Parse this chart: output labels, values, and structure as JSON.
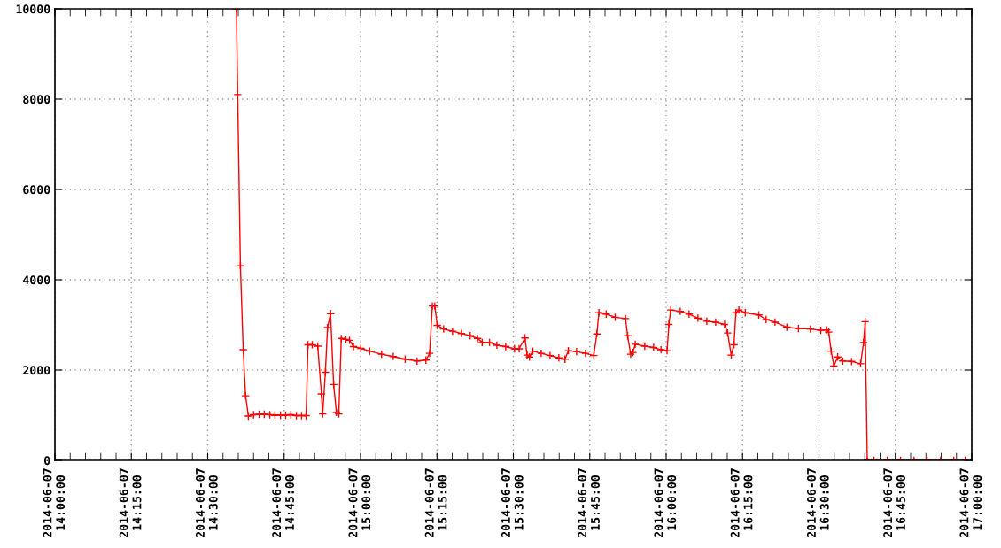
{
  "chart_data": {
    "type": "line",
    "x": [
      "2014-06-07T14:35:38",
      "2014-06-07T14:35:53",
      "2014-06-07T14:36:25",
      "2014-06-07T14:36:58",
      "2014-06-07T14:37:26",
      "2014-06-07T14:37:59",
      "2014-06-07T14:39:00",
      "2014-06-07T14:40:05",
      "2014-06-07T14:41:06",
      "2014-06-07T14:42:11",
      "2014-06-07T14:43:12",
      "2014-06-07T14:44:17",
      "2014-06-07T14:45:18",
      "2014-06-07T14:46:19",
      "2014-06-07T14:47:24",
      "2014-06-07T14:48:25",
      "2014-06-07T14:49:19",
      "2014-06-07T14:49:41",
      "2014-06-07T14:50:31",
      "2014-06-07T14:51:36",
      "2014-06-07T14:52:19",
      "2014-06-07T14:52:34",
      "2014-06-07T14:53:06",
      "2014-06-07T14:53:31",
      "2014-06-07T14:54:07",
      "2014-06-07T14:54:43",
      "2014-06-07T14:55:16",
      "2014-06-07T14:55:44",
      "2014-06-07T14:56:13",
      "2014-06-07T14:57:07",
      "2014-06-07T14:57:50",
      "2014-06-07T14:58:37",
      "2014-06-07T15:00:04",
      "2014-06-07T15:01:48",
      "2014-06-07T15:04:08",
      "2014-06-07T15:06:25",
      "2014-06-07T15:08:46",
      "2014-06-07T15:11:06",
      "2014-06-07T15:12:50",
      "2014-06-07T15:13:34",
      "2014-06-07T15:14:06",
      "2014-06-07T15:14:35",
      "2014-06-07T15:15:04",
      "2014-06-07T15:16:19",
      "2014-06-07T15:18:04",
      "2014-06-07T15:19:48",
      "2014-06-07T15:21:32",
      "2014-06-07T15:22:59",
      "2014-06-07T15:23:53",
      "2014-06-07T15:25:19",
      "2014-06-07T15:26:46",
      "2014-06-07T15:28:30",
      "2014-06-07T15:30:14",
      "2014-06-07T15:31:08",
      "2014-06-07T15:32:17",
      "2014-06-07T15:32:42",
      "2014-06-07T15:33:11",
      "2014-06-07T15:33:50",
      "2014-06-07T15:35:28",
      "2014-06-07T15:37:12",
      "2014-06-07T15:38:56",
      "2014-06-07T15:40:08",
      "2014-06-07T15:40:48",
      "2014-06-07T15:42:25",
      "2014-06-07T15:44:10",
      "2014-06-07T15:45:47",
      "2014-06-07T15:46:23",
      "2014-06-07T15:46:48",
      "2014-06-07T15:48:14",
      "2014-06-07T15:49:59",
      "2014-06-07T15:52:01",
      "2014-06-07T15:52:26",
      "2014-06-07T15:53:02",
      "2014-06-07T15:53:28",
      "2014-06-07T15:53:56",
      "2014-06-07T15:55:48",
      "2014-06-07T15:57:32",
      "2014-06-07T15:58:59",
      "2014-06-07T16:00:11",
      "2014-06-07T16:00:32",
      "2014-06-07T16:00:54",
      "2014-06-07T16:02:46",
      "2014-06-07T16:04:30",
      "2014-06-07T16:06:14",
      "2014-06-07T16:07:59",
      "2014-06-07T16:09:43",
      "2014-06-07T16:11:28",
      "2014-06-07T16:12:04",
      "2014-06-07T16:12:47",
      "2014-06-07T16:13:19",
      "2014-06-07T16:13:41",
      "2014-06-07T16:14:17",
      "2014-06-07T16:15:32",
      "2014-06-07T16:18:11",
      "2014-06-07T16:19:37",
      "2014-06-07T16:21:22",
      "2014-06-07T16:23:42",
      "2014-06-07T16:25:59",
      "2014-06-07T16:28:19",
      "2014-06-07T16:30:22",
      "2014-06-07T16:31:30",
      "2014-06-07T16:31:55",
      "2014-06-07T16:32:24",
      "2014-06-07T16:32:56",
      "2014-06-07T16:33:40",
      "2014-06-07T16:34:41",
      "2014-06-07T16:36:25",
      "2014-06-07T16:38:10",
      "2014-06-07T16:38:46",
      "2014-06-07T16:39:04",
      "2014-06-07T16:39:29",
      "2014-06-07T16:40:48",
      "2014-06-07T16:43:26",
      "2014-06-07T16:46:01",
      "2014-06-07T16:48:40",
      "2014-06-07T16:51:14",
      "2014-06-07T16:53:53",
      "2014-06-07T16:56:28",
      "2014-06-07T16:58:44"
    ],
    "series": [
      {
        "color": "#ff0000",
        "values": [
          10000,
          8100,
          4310,
          2450,
          1430,
          980,
          1010,
          1020,
          1020,
          1010,
          1000,
          1000,
          1000,
          1010,
          990,
          990,
          990,
          2560,
          2560,
          2530,
          1470,
          1030,
          1950,
          2940,
          3250,
          1680,
          1060,
          1030,
          2700,
          2680,
          2660,
          2520,
          2480,
          2420,
          2350,
          2300,
          2240,
          2200,
          2220,
          2370,
          3420,
          3420,
          2990,
          2910,
          2860,
          2810,
          2760,
          2700,
          2610,
          2610,
          2550,
          2520,
          2470,
          2470,
          2710,
          2330,
          2290,
          2420,
          2370,
          2320,
          2270,
          2240,
          2430,
          2410,
          2370,
          2320,
          2800,
          3270,
          3240,
          3170,
          3140,
          2760,
          2350,
          2390,
          2570,
          2530,
          2500,
          2450,
          2430,
          3010,
          3330,
          3300,
          3240,
          3150,
          3080,
          3060,
          3010,
          2820,
          2330,
          2560,
          3270,
          3330,
          3270,
          3220,
          3120,
          3060,
          2950,
          2920,
          2910,
          2880,
          2890,
          2840,
          2420,
          2090,
          2290,
          2200,
          2190,
          2140,
          2610,
          3070,
          0,
          0,
          0,
          0,
          0,
          0,
          0,
          0,
          0
        ]
      }
    ],
    "marker": "cross",
    "line_style": "solid",
    "grid": true,
    "xlim": [
      "2014-06-07T14:00",
      "2014-06-07T17:00"
    ],
    "ylim": [
      0,
      10000
    ],
    "yticks": [
      0,
      2000,
      4000,
      6000,
      8000,
      10000
    ],
    "xticks": [
      {
        "value": "2014-06-07T14:00",
        "label": "2014-06-07\n14:00:00"
      },
      {
        "value": "2014-06-07T14:03",
        "label": null
      },
      {
        "value": "2014-06-07T14:06",
        "label": null
      },
      {
        "value": "2014-06-07T14:09",
        "label": null
      },
      {
        "value": "2014-06-07T14:12",
        "label": null
      },
      {
        "value": "2014-06-07T14:15",
        "label": "2014-06-07\n14:15:00"
      },
      {
        "value": "2014-06-07T14:18",
        "label": null
      },
      {
        "value": "2014-06-07T14:21",
        "label": null
      },
      {
        "value": "2014-06-07T14:24",
        "label": null
      },
      {
        "value": "2014-06-07T14:27",
        "label": null
      },
      {
        "value": "2014-06-07T14:30",
        "label": "2014-06-07\n14:30:00"
      },
      {
        "value": "2014-06-07T14:33",
        "label": null
      },
      {
        "value": "2014-06-07T14:36",
        "label": null
      },
      {
        "value": "2014-06-07T14:39",
        "label": null
      },
      {
        "value": "2014-06-07T14:42",
        "label": null
      },
      {
        "value": "2014-06-07T14:45",
        "label": "2014-06-07\n14:45:00"
      },
      {
        "value": "2014-06-07T14:48",
        "label": null
      },
      {
        "value": "2014-06-07T14:51",
        "label": null
      },
      {
        "value": "2014-06-07T14:54",
        "label": null
      },
      {
        "value": "2014-06-07T14:57",
        "label": null
      },
      {
        "value": "2014-06-07T15:00",
        "label": "2014-06-07\n15:00:00"
      },
      {
        "value": "2014-06-07T15:03",
        "label": null
      },
      {
        "value": "2014-06-07T15:06",
        "label": null
      },
      {
        "value": "2014-06-07T15:09",
        "label": null
      },
      {
        "value": "2014-06-07T15:12",
        "label": null
      },
      {
        "value": "2014-06-07T15:15",
        "label": "2014-06-07\n15:15:00"
      },
      {
        "value": "2014-06-07T15:18",
        "label": null
      },
      {
        "value": "2014-06-07T15:21",
        "label": null
      },
      {
        "value": "2014-06-07T15:24",
        "label": null
      },
      {
        "value": "2014-06-07T15:27",
        "label": null
      },
      {
        "value": "2014-06-07T15:30",
        "label": "2014-06-07\n15:30:00"
      },
      {
        "value": "2014-06-07T15:33",
        "label": null
      },
      {
        "value": "2014-06-07T15:36",
        "label": null
      },
      {
        "value": "2014-06-07T15:39",
        "label": null
      },
      {
        "value": "2014-06-07T15:42",
        "label": null
      },
      {
        "value": "2014-06-07T15:45",
        "label": "2014-06-07\n15:45:00"
      },
      {
        "value": "2014-06-07T15:48",
        "label": null
      },
      {
        "value": "2014-06-07T15:51",
        "label": null
      },
      {
        "value": "2014-06-07T15:54",
        "label": null
      },
      {
        "value": "2014-06-07T15:57",
        "label": null
      },
      {
        "value": "2014-06-07T16:00",
        "label": "2014-06-07\n16:00:00"
      },
      {
        "value": "2014-06-07T16:03",
        "label": null
      },
      {
        "value": "2014-06-07T16:06",
        "label": null
      },
      {
        "value": "2014-06-07T16:09",
        "label": null
      },
      {
        "value": "2014-06-07T16:12",
        "label": null
      },
      {
        "value": "2014-06-07T16:15",
        "label": "2014-06-07\n16:15:00"
      },
      {
        "value": "2014-06-07T16:18",
        "label": null
      },
      {
        "value": "2014-06-07T16:21",
        "label": null
      },
      {
        "value": "2014-06-07T16:24",
        "label": null
      },
      {
        "value": "2014-06-07T16:27",
        "label": null
      },
      {
        "value": "2014-06-07T16:30",
        "label": "2014-06-07\n16:30:00"
      },
      {
        "value": "2014-06-07T16:33",
        "label": null
      },
      {
        "value": "2014-06-07T16:36",
        "label": null
      },
      {
        "value": "2014-06-07T16:39",
        "label": null
      },
      {
        "value": "2014-06-07T16:42",
        "label": null
      },
      {
        "value": "2014-06-07T16:45",
        "label": "2014-06-07\n16:45:00"
      },
      {
        "value": "2014-06-07T16:48",
        "label": null
      },
      {
        "value": "2014-06-07T16:51",
        "label": null
      },
      {
        "value": "2014-06-07T16:54",
        "label": null
      },
      {
        "value": "2014-06-07T16:57",
        "label": null
      },
      {
        "value": "2014-06-07T17:00",
        "label": "2014-06-07\n17:00:00"
      }
    ]
  }
}
